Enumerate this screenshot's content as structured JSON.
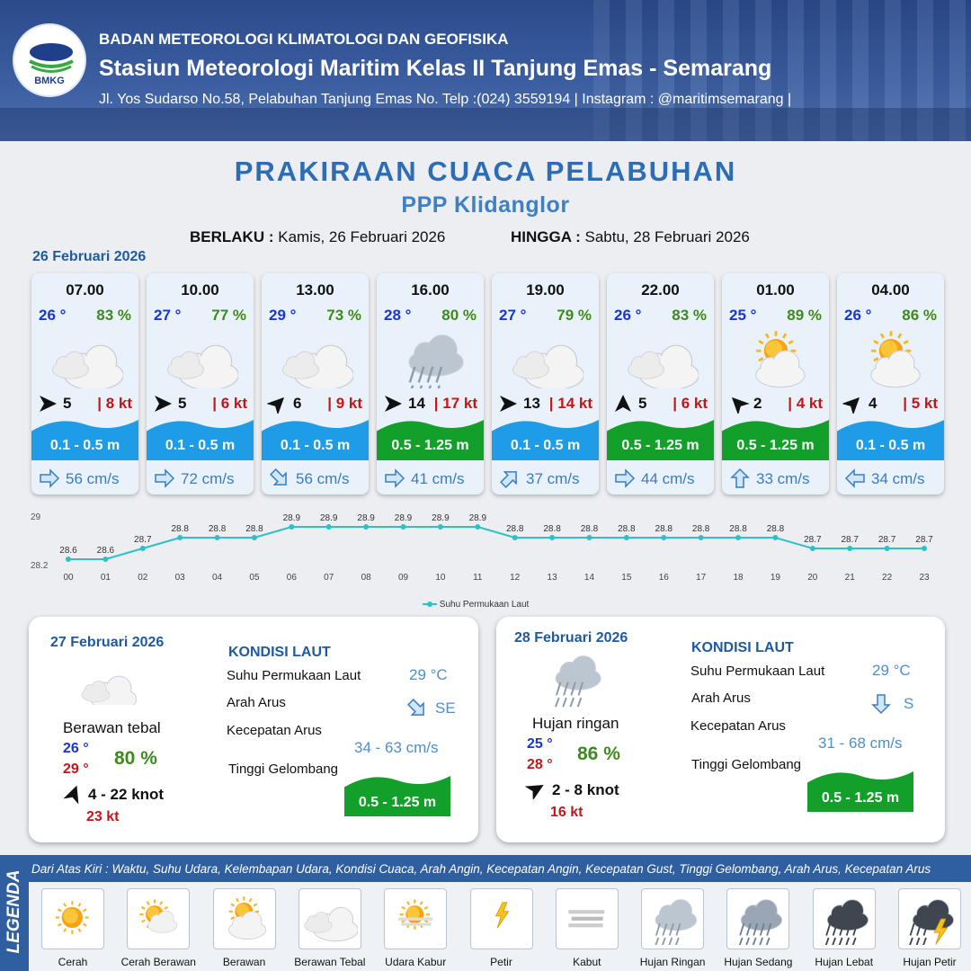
{
  "header": {
    "logo_text": "BMKG",
    "line1": "BADAN METEOROLOGI KLIMATOLOGI DAN GEOFISIKA",
    "line2": "Stasiun Meteorologi Maritim Kelas II Tanjung Emas - Semarang",
    "line3": "Jl. Yos Sudarso No.58, Pelabuhan Tanjung Emas No. Telp :(024) 3559194 | Instagram : @maritimsemarang |"
  },
  "title": "PRAKIRAAN CUACA PELABUHAN",
  "subtitle": "PPP Klidanglor",
  "validity": {
    "from_label": "BERLAKU :",
    "from_value": "Kamis, 26 Februari 2026",
    "to_label": "HINGGA :",
    "to_value": "Sabtu, 28 Februari 2026"
  },
  "day1_date": "26 Februari 2026",
  "forecasts": [
    {
      "time": "07.00",
      "temp": "26 °",
      "humidity": "83 %",
      "condition": "berawan-tebal",
      "wind_dir_deg": 90,
      "wind": "5",
      "gust": "| 8 kt",
      "wave": "0.1 - 0.5 m",
      "wave_class": "low",
      "current_dir_deg": 90,
      "current": "56 cm/s"
    },
    {
      "time": "10.00",
      "temp": "27 °",
      "humidity": "77 %",
      "condition": "berawan-tebal",
      "wind_dir_deg": 90,
      "wind": "5",
      "gust": "| 6 kt",
      "wave": "0.1 - 0.5 m",
      "wave_class": "low",
      "current_dir_deg": 90,
      "current": "72 cm/s"
    },
    {
      "time": "13.00",
      "temp": "29 °",
      "humidity": "73 %",
      "condition": "berawan-tebal",
      "wind_dir_deg": 45,
      "wind": "6",
      "gust": "| 9 kt",
      "wave": "0.1 - 0.5 m",
      "wave_class": "low",
      "current_dir_deg": 135,
      "current": "56 cm/s"
    },
    {
      "time": "16.00",
      "temp": "28 °",
      "humidity": "80 %",
      "condition": "hujan-ringan",
      "wind_dir_deg": 90,
      "wind": "14",
      "gust": "| 17 kt",
      "wave": "0.5 - 1.25 m",
      "wave_class": "mid",
      "current_dir_deg": 90,
      "current": "41 cm/s"
    },
    {
      "time": "19.00",
      "temp": "27 °",
      "humidity": "79 %",
      "condition": "berawan-tebal",
      "wind_dir_deg": 90,
      "wind": "13",
      "gust": "| 14 kt",
      "wave": "0.1 - 0.5 m",
      "wave_class": "low",
      "current_dir_deg": 45,
      "current": "37 cm/s"
    },
    {
      "time": "22.00",
      "temp": "26 °",
      "humidity": "83 %",
      "condition": "berawan-tebal",
      "wind_dir_deg": 0,
      "wind": "5",
      "gust": "| 6 kt",
      "wave": "0.5 - 1.25 m",
      "wave_class": "mid",
      "current_dir_deg": 90,
      "current": "44 cm/s"
    },
    {
      "time": "01.00",
      "temp": "25 °",
      "humidity": "89 %",
      "condition": "berawan",
      "wind_dir_deg": 315,
      "wind": "2",
      "gust": "| 4 kt",
      "wave": "0.5 - 1.25 m",
      "wave_class": "mid",
      "current_dir_deg": 0,
      "current": "33 cm/s"
    },
    {
      "time": "04.00",
      "temp": "26 °",
      "humidity": "86 %",
      "condition": "berawan",
      "wind_dir_deg": 45,
      "wind": "4",
      "gust": "| 5 kt",
      "wave": "0.1 - 0.5 m",
      "wave_class": "low",
      "current_dir_deg": 270,
      "current": "34 cm/s"
    }
  ],
  "chart_data": {
    "type": "line",
    "x": [
      "00",
      "01",
      "02",
      "03",
      "04",
      "05",
      "06",
      "07",
      "08",
      "09",
      "10",
      "11",
      "12",
      "13",
      "14",
      "15",
      "16",
      "17",
      "18",
      "19",
      "20",
      "21",
      "22",
      "23"
    ],
    "series": [
      {
        "name": "Suhu Permukaan Laut",
        "values": [
          28.6,
          28.6,
          28.7,
          28.8,
          28.8,
          28.8,
          28.9,
          28.9,
          28.9,
          28.9,
          28.9,
          28.9,
          28.8,
          28.8,
          28.8,
          28.8,
          28.8,
          28.8,
          28.8,
          28.8,
          28.7,
          28.7,
          28.7,
          28.7
        ]
      }
    ],
    "value_labels": [
      "28.6",
      "28.6",
      "28.7",
      "28.8",
      "28.8",
      "28.8",
      "28.9",
      "28.9",
      "28.9",
      "28.9",
      "28.9",
      "28.9",
      "28.8",
      "28.8",
      "28.8",
      "28.8",
      "28.8",
      "28.8",
      "28.8",
      "28.8",
      "28.7",
      "28.7",
      "28.7",
      "28.7"
    ],
    "ylim": [
      28.2,
      29
    ],
    "y_ticks": [
      "29",
      "28.2"
    ],
    "legend": "bottom",
    "color": "#2cc1c4"
  },
  "days": [
    {
      "date": "27 Februari 2026",
      "condition": "Berawan tebal",
      "icon": "berawan-tebal",
      "tmin": "26 °",
      "tmax": "29 °",
      "humidity": "80 %",
      "wind_dir_deg": 20,
      "wind": "4  - 22 knot",
      "gust": "23 kt",
      "sea_title": "KONDISI LAUT",
      "sst_label": "Suhu Permukaan Laut",
      "sst": "29 °C",
      "current_dir_label": "Arah Arus",
      "current_dir": "SE",
      "current_dir_deg": 135,
      "current_speed_label": "Kecepatan Arus",
      "current_speed": "34 - 63 cm/s",
      "wave_label": "Tinggi Gelombang",
      "wave": "0.5 - 1.25 m"
    },
    {
      "date": "28 Februari 2026",
      "condition": "Hujan ringan",
      "icon": "hujan-ringan",
      "tmin": "25 °",
      "tmax": "28 °",
      "humidity": "86 %",
      "wind_dir_deg": 60,
      "wind": "2  - 8 knot",
      "gust": "16 kt",
      "sea_title": "KONDISI LAUT",
      "sst_label": "Suhu Permukaan Laut",
      "sst": "29 °C",
      "current_dir_label": "Arah Arus",
      "current_dir": "S",
      "current_dir_deg": 180,
      "current_speed_label": "Kecepatan Arus",
      "current_speed": "31 - 68 cm/s",
      "wave_label": "Tinggi Gelombang",
      "wave": "0.5 - 1.25 m"
    }
  ],
  "legend": {
    "side_label": "LEGENDA",
    "description": "Dari Atas Kiri : Waktu, Suhu Udara, Kelembapan Udara, Kondisi Cuaca, Arah Angin, Kecepatan Angin, Kecepatan Gust, Tinggi Gelombang, Arah Arus, Kecepatan Arus",
    "items": [
      {
        "label": "Cerah",
        "icon": "cerah"
      },
      {
        "label": "Cerah Berawan",
        "icon": "cerah-berawan"
      },
      {
        "label": "Berawan",
        "icon": "berawan"
      },
      {
        "label": "Berawan Tebal",
        "icon": "berawan-tebal"
      },
      {
        "label": "Udara Kabur",
        "icon": "udara-kabur"
      },
      {
        "label": "Petir",
        "icon": "petir"
      },
      {
        "label": "Kabut",
        "icon": "kabut"
      },
      {
        "label": "Hujan Ringan",
        "icon": "hujan-ringan"
      },
      {
        "label": "Hujan Sedang",
        "icon": "hujan-sedang"
      },
      {
        "label": "Hujan Lebat",
        "icon": "hujan-lebat"
      },
      {
        "label": "Hujan Petir",
        "icon": "hujan-petir"
      }
    ]
  },
  "colors": {
    "wave_low": "#1e9ce8",
    "wave_mid": "#12a02a",
    "title": "#2c6db5"
  }
}
